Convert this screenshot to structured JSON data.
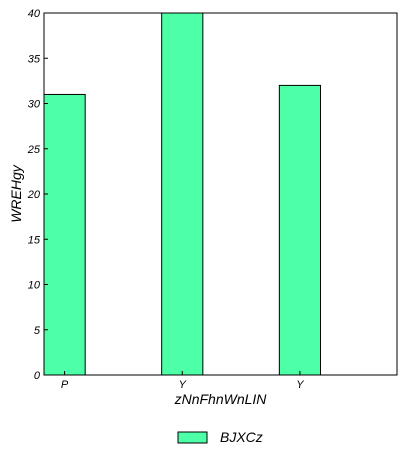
{
  "chart_data": {
    "type": "bar",
    "categories": [
      "P",
      "Y",
      "Y"
    ],
    "series": [
      {
        "name": "BJXCz",
        "values": [
          31,
          40,
          32
        ],
        "color": "#4dffa6"
      }
    ],
    "xlabel": "zNnFhnWnLIN",
    "ylabel": "WREHgy",
    "ylim": [
      0,
      40
    ],
    "yticks": [
      0,
      5,
      10,
      15,
      20,
      25,
      30,
      35,
      40
    ],
    "grid": false,
    "legend_position": "bottom-center",
    "bar_edge_color": "#000000"
  }
}
